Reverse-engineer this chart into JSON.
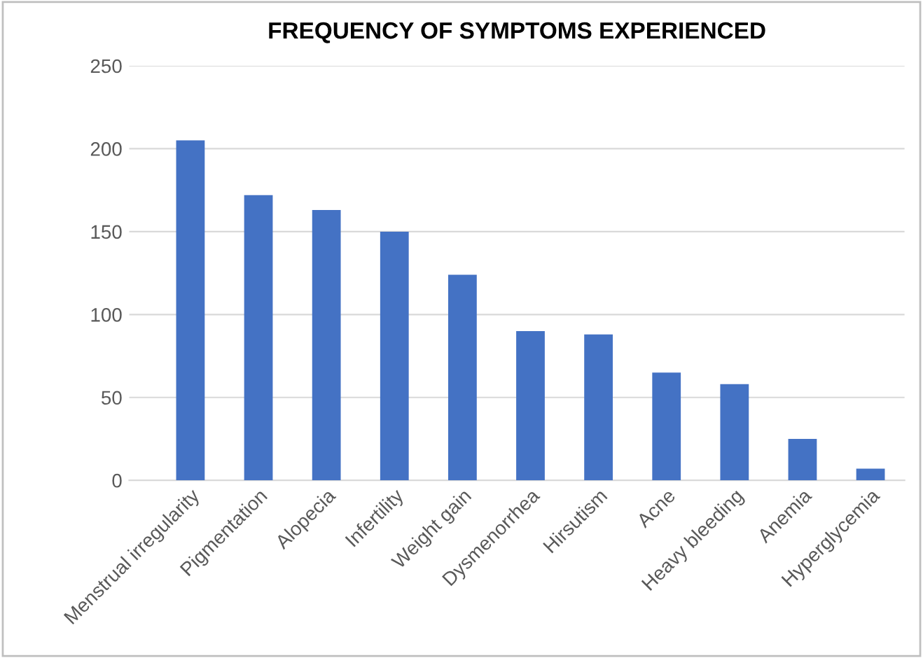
{
  "chart_data": {
    "type": "bar",
    "title": "FREQUENCY OF SYMPTOMS EXPERIENCED",
    "categories": [
      "Menstrual irregularity",
      "Pigmentation",
      "Alopecia",
      "Infertility",
      "Weight gain",
      "Dysmenorrhea",
      "Hirsutism",
      "Acne",
      "Heavy bleeding",
      "Anemia",
      "Hyperglycemia"
    ],
    "values": [
      205,
      172,
      163,
      150,
      124,
      90,
      88,
      65,
      58,
      25,
      7
    ],
    "color": "#4472c4",
    "ylim": [
      0,
      250
    ],
    "yticks": [
      0,
      50,
      100,
      150,
      200,
      250
    ],
    "grid": "y"
  }
}
